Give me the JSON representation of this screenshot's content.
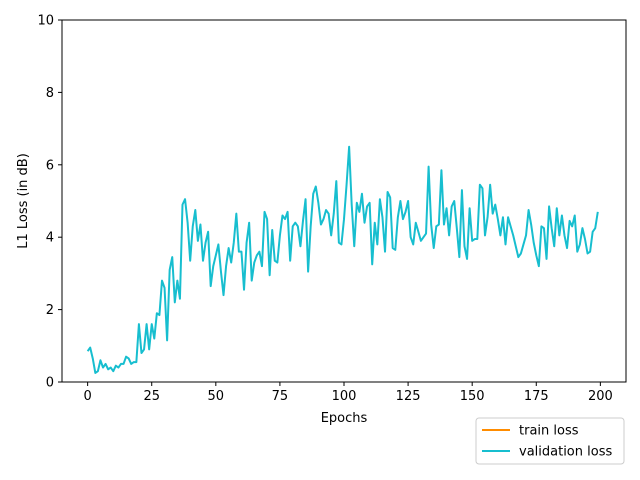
{
  "chart_data": {
    "type": "line",
    "title": "",
    "xlabel": "Epochs",
    "ylabel": "L1 Loss (in dB)",
    "xlim": [
      -10,
      210
    ],
    "ylim": [
      0,
      10
    ],
    "xticks": [
      "0",
      "25",
      "50",
      "75",
      "100",
      "125",
      "150",
      "175",
      "200"
    ],
    "yticks": [
      "0",
      "2",
      "4",
      "6",
      "8",
      "10"
    ],
    "grid": false,
    "legend_position": "lower-right-outside",
    "series": [
      {
        "name": "train loss",
        "color": "#ff8c00",
        "x": [],
        "values": []
      },
      {
        "name": "validation loss",
        "color": "#17becf",
        "x": [
          0,
          1,
          2,
          3,
          4,
          5,
          6,
          7,
          8,
          9,
          10,
          11,
          12,
          13,
          14,
          15,
          16,
          17,
          18,
          19,
          20,
          21,
          22,
          23,
          24,
          25,
          26,
          27,
          28,
          29,
          30,
          31,
          32,
          33,
          34,
          35,
          36,
          37,
          38,
          39,
          40,
          41,
          42,
          43,
          44,
          45,
          46,
          47,
          48,
          49,
          50,
          51,
          52,
          53,
          54,
          55,
          56,
          57,
          58,
          59,
          60,
          61,
          62,
          63,
          64,
          65,
          66,
          67,
          68,
          69,
          70,
          71,
          72,
          73,
          74,
          75,
          76,
          77,
          78,
          79,
          80,
          81,
          82,
          83,
          84,
          85,
          86,
          87,
          88,
          89,
          90,
          91,
          92,
          93,
          94,
          95,
          96,
          97,
          98,
          99,
          100,
          101,
          102,
          103,
          104,
          105,
          106,
          107,
          108,
          109,
          110,
          111,
          112,
          113,
          114,
          115,
          116,
          117,
          118,
          119,
          120,
          121,
          122,
          123,
          124,
          125,
          126,
          127,
          128,
          129,
          130,
          131,
          132,
          133,
          134,
          135,
          136,
          137,
          138,
          139,
          140,
          141,
          142,
          143,
          144,
          145,
          146,
          147,
          148,
          149,
          150,
          151,
          152,
          153,
          154,
          155,
          156,
          157,
          158,
          159,
          160,
          161,
          162,
          163,
          164,
          165,
          166,
          167,
          168,
          169,
          170,
          171,
          172,
          173,
          174,
          175,
          176,
          177,
          178,
          179,
          180,
          181,
          182,
          183,
          184,
          185,
          186,
          187,
          188,
          189,
          190,
          191,
          192,
          193,
          194,
          195,
          196,
          197,
          198,
          199
        ],
        "values": [
          0.85,
          0.95,
          0.65,
          0.25,
          0.3,
          0.6,
          0.4,
          0.5,
          0.35,
          0.4,
          0.3,
          0.45,
          0.4,
          0.5,
          0.5,
          0.7,
          0.65,
          0.5,
          0.55,
          0.55,
          1.6,
          0.8,
          0.9,
          1.6,
          0.9,
          1.6,
          1.2,
          1.9,
          1.85,
          2.8,
          2.6,
          1.15,
          3.1,
          3.45,
          2.2,
          2.8,
          2.3,
          4.9,
          5.05,
          4.4,
          3.35,
          4.3,
          4.75,
          3.9,
          4.35,
          3.35,
          3.85,
          4.15,
          2.65,
          3.2,
          3.5,
          3.8,
          3.05,
          2.4,
          3.2,
          3.7,
          3.3,
          3.85,
          4.65,
          3.6,
          3.6,
          2.55,
          3.85,
          4.4,
          2.8,
          3.3,
          3.5,
          3.6,
          3.2,
          4.7,
          4.5,
          2.95,
          4.2,
          3.35,
          3.3,
          4.05,
          4.6,
          4.5,
          4.7,
          3.35,
          4.3,
          4.4,
          4.3,
          3.75,
          4.45,
          5.05,
          3.05,
          4.3,
          5.2,
          5.4,
          4.95,
          4.35,
          4.5,
          4.75,
          4.65,
          4.05,
          4.65,
          5.55,
          3.85,
          3.8,
          4.5,
          5.45,
          6.5,
          4.9,
          3.75,
          4.95,
          4.7,
          5.2,
          4.4,
          4.85,
          4.95,
          3.25,
          4.4,
          3.8,
          5.05,
          4.55,
          3.6,
          5.25,
          5.1,
          3.7,
          3.65,
          4.55,
          5.0,
          4.5,
          4.7,
          5.0,
          4.0,
          3.8,
          4.4,
          4.15,
          3.9,
          4.0,
          4.1,
          5.95,
          4.35,
          3.7,
          4.3,
          4.35,
          5.85,
          4.35,
          4.8,
          4.05,
          4.85,
          5.0,
          4.25,
          3.45,
          5.3,
          3.75,
          3.4,
          4.8,
          3.9,
          3.95,
          3.95,
          5.45,
          5.35,
          4.05,
          4.55,
          5.45,
          4.65,
          4.9,
          4.5,
          4.05,
          4.55,
          3.8,
          4.55,
          4.3,
          4.05,
          3.75,
          3.45,
          3.55,
          3.8,
          4.05,
          4.75,
          4.35,
          3.85,
          3.5,
          3.2,
          4.3,
          4.25,
          3.4,
          4.85,
          4.25,
          3.75,
          4.8,
          4.05,
          4.6,
          4.05,
          3.7,
          4.45,
          4.3,
          4.6,
          3.6,
          3.8,
          4.25,
          3.95,
          3.55,
          3.6,
          4.15,
          4.25,
          4.7
        ]
      }
    ]
  }
}
